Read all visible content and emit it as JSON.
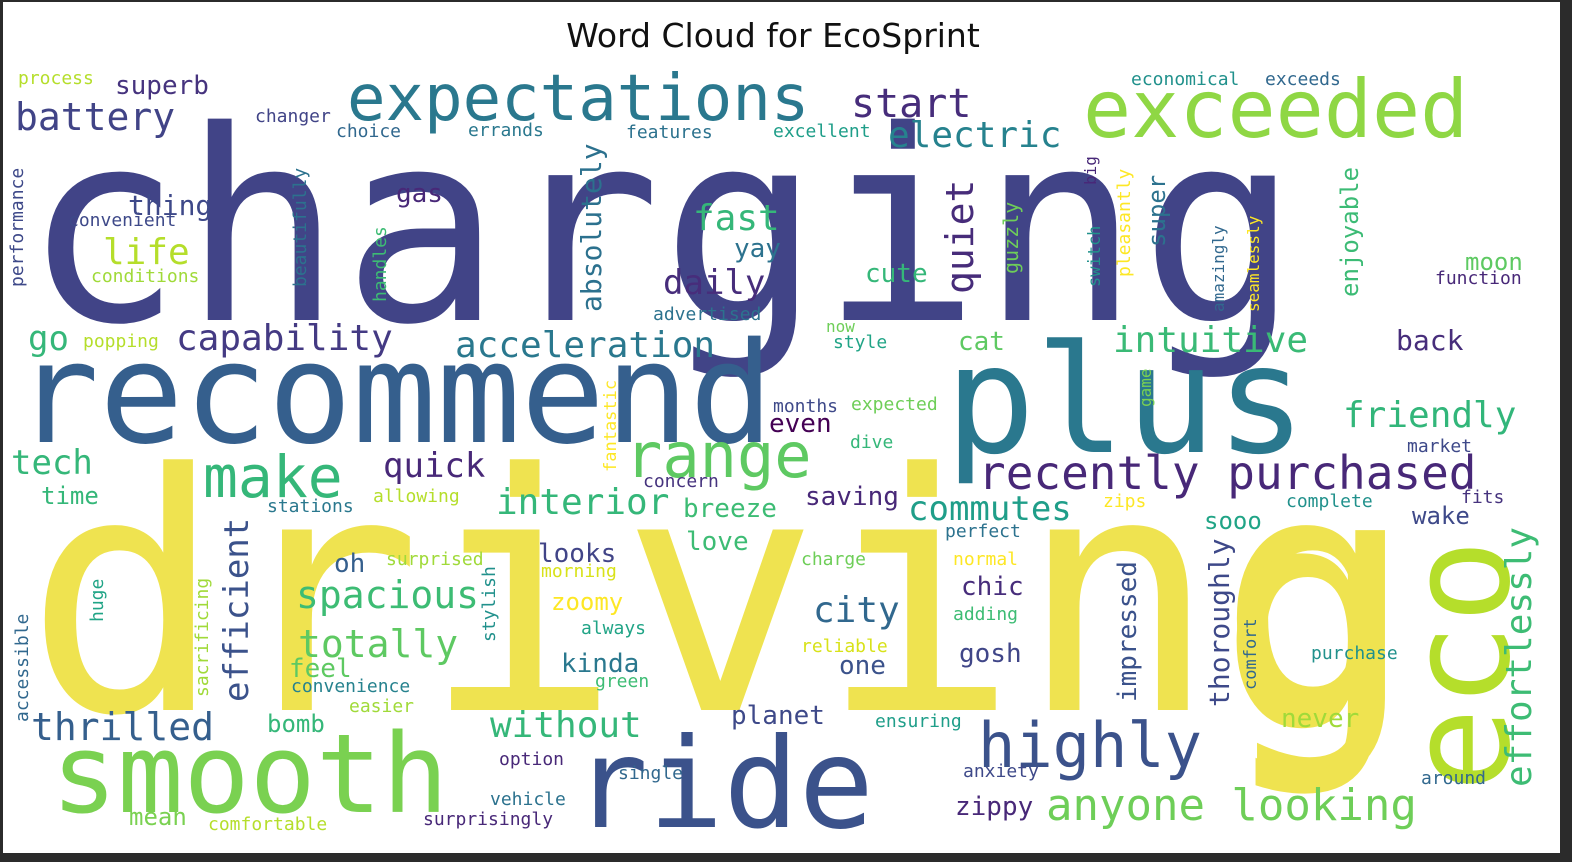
{
  "chart_data": {
    "type": "wordcloud",
    "title": "Word Cloud for EcoSprint",
    "words": [
      {
        "text": "charging",
        "weight": 1.0,
        "color": "#414487"
      },
      {
        "text": "driving",
        "weight": 0.98,
        "color": "#efe350"
      },
      {
        "text": "recommend",
        "weight": 0.62,
        "color": "#355f8d"
      },
      {
        "text": "plus",
        "weight": 0.6,
        "color": "#2a788e"
      },
      {
        "text": "g",
        "weight": 0.6,
        "color": "#efe350"
      },
      {
        "text": "ride",
        "weight": 0.56,
        "color": "#3b528b"
      },
      {
        "text": "smooth",
        "weight": 0.5,
        "color": "#7ad151"
      },
      {
        "text": "exceeded",
        "weight": 0.38,
        "color": "#8fd744"
      },
      {
        "text": "expectations",
        "weight": 0.32,
        "color": "#2a788e"
      },
      {
        "text": "eco",
        "weight": 0.4,
        "color": "#b5de2b"
      },
      {
        "text": "highly",
        "weight": 0.3,
        "color": "#3b528b"
      },
      {
        "text": "range",
        "weight": 0.3,
        "color": "#5ec962"
      },
      {
        "text": "make",
        "weight": 0.28,
        "color": "#35b779"
      },
      {
        "text": "recently purchased",
        "weight": 0.22,
        "color": "#482878"
      },
      {
        "text": "anyone looking",
        "weight": 0.22,
        "color": "#6ece58"
      },
      {
        "text": "effortlessly",
        "weight": 0.18,
        "color": "#3dbc74"
      },
      {
        "text": "start",
        "weight": 0.2,
        "color": "#472d7b"
      },
      {
        "text": "battery",
        "weight": 0.18,
        "color": "#414487"
      },
      {
        "text": "electric",
        "weight": 0.17,
        "color": "#26828e"
      },
      {
        "text": "quiet",
        "weight": 0.18,
        "color": "#472c7a"
      },
      {
        "text": "capability",
        "weight": 0.18,
        "color": "#443a83"
      },
      {
        "text": "acceleration",
        "weight": 0.18,
        "color": "#2a788e"
      },
      {
        "text": "intuitive",
        "weight": 0.18,
        "color": "#3aba76"
      },
      {
        "text": "friendly",
        "weight": 0.18,
        "color": "#32b67a"
      },
      {
        "text": "interior",
        "weight": 0.18,
        "color": "#35b779"
      },
      {
        "text": "commutes",
        "weight": 0.17,
        "color": "#1f9e89"
      },
      {
        "text": "without",
        "weight": 0.18,
        "color": "#35b779"
      },
      {
        "text": "thrilled",
        "weight": 0.18,
        "color": "#355f8d"
      },
      {
        "text": "spacious",
        "weight": 0.18,
        "color": "#3dbc74"
      },
      {
        "text": "totally",
        "weight": 0.18,
        "color": "#5ec962"
      },
      {
        "text": "efficient",
        "weight": 0.17,
        "color": "#3b528b"
      },
      {
        "text": "city",
        "weight": 0.18,
        "color": "#31688e"
      },
      {
        "text": "fast",
        "weight": 0.17,
        "color": "#35b779"
      },
      {
        "text": "life",
        "weight": 0.17,
        "color": "#b5de2b"
      },
      {
        "text": "daily",
        "weight": 0.16,
        "color": "#472d7b"
      },
      {
        "text": "quick",
        "weight": 0.16,
        "color": "#482878"
      },
      {
        "text": "tech",
        "weight": 0.16,
        "color": "#35b779"
      },
      {
        "text": "go",
        "weight": 0.15,
        "color": "#35b779"
      },
      {
        "text": "absolutely",
        "weight": 0.13,
        "color": "#2c718e"
      },
      {
        "text": "impressed",
        "weight": 0.12,
        "color": "#3b528b"
      },
      {
        "text": "thoroughly",
        "weight": 0.13,
        "color": "#3e4989"
      },
      {
        "text": "superb",
        "weight": 0.12,
        "color": "#46337e"
      },
      {
        "text": "thing",
        "weight": 0.12,
        "color": "#3e4989"
      },
      {
        "text": "yay",
        "weight": 0.11,
        "color": "#2c728e"
      },
      {
        "text": "cute",
        "weight": 0.11,
        "color": "#35b779"
      },
      {
        "text": "gas",
        "weight": 0.11,
        "color": "#482878"
      },
      {
        "text": "back",
        "weight": 0.11,
        "color": "#472d7b"
      },
      {
        "text": "enjoyable",
        "weight": 0.11,
        "color": "#3cbb75"
      },
      {
        "text": "super",
        "weight": 0.11,
        "color": "#2c728e"
      },
      {
        "text": "moon",
        "weight": 0.1,
        "color": "#5ec962"
      },
      {
        "text": "cat",
        "weight": 0.1,
        "color": "#5ec962"
      },
      {
        "text": "even",
        "weight": 0.11,
        "color": "#440154"
      },
      {
        "text": "saving",
        "weight": 0.11,
        "color": "#482878"
      },
      {
        "text": "breeze",
        "weight": 0.11,
        "color": "#3dbc74"
      },
      {
        "text": "love",
        "weight": 0.11,
        "color": "#3dbc74"
      },
      {
        "text": "looks",
        "weight": 0.11,
        "color": "#414487"
      },
      {
        "text": "oh",
        "weight": 0.11,
        "color": "#355f8d"
      },
      {
        "text": "feel",
        "weight": 0.11,
        "color": "#5ec962"
      },
      {
        "text": "bomb",
        "weight": 0.1,
        "color": "#35b779"
      },
      {
        "text": "planet",
        "weight": 0.1,
        "color": "#3e4989"
      },
      {
        "text": "kinda",
        "weight": 0.1,
        "color": "#2a788e"
      },
      {
        "text": "one",
        "weight": 0.1,
        "color": "#3b528b"
      },
      {
        "text": "gosh",
        "weight": 0.1,
        "color": "#404688"
      },
      {
        "text": "chic",
        "weight": 0.1,
        "color": "#472d7b"
      },
      {
        "text": "zippy",
        "weight": 0.1,
        "color": "#482878"
      },
      {
        "text": "sooo",
        "weight": 0.1,
        "color": "#20a486"
      },
      {
        "text": "wake",
        "weight": 0.1,
        "color": "#3e4989"
      },
      {
        "text": "never",
        "weight": 0.1,
        "color": "#a0da39"
      },
      {
        "text": "zoomy",
        "weight": 0.1,
        "color": "#fde725"
      },
      {
        "text": "mean",
        "weight": 0.09,
        "color": "#7ad151"
      },
      {
        "text": "time",
        "weight": 0.09,
        "color": "#35b779"
      },
      {
        "text": "guzzly",
        "weight": 0.08,
        "color": "#6ece58"
      },
      {
        "text": "process",
        "weight": 0.07,
        "color": "#b5de2b"
      },
      {
        "text": "changer",
        "weight": 0.07,
        "color": "#414487"
      },
      {
        "text": "choice",
        "weight": 0.07,
        "color": "#31688e"
      },
      {
        "text": "errands",
        "weight": 0.07,
        "color": "#2a788e"
      },
      {
        "text": "features",
        "weight": 0.07,
        "color": "#2c728e"
      },
      {
        "text": "excellent",
        "weight": 0.07,
        "color": "#1f9e89"
      },
      {
        "text": "economical",
        "weight": 0.07,
        "color": "#21918c"
      },
      {
        "text": "exceeds",
        "weight": 0.07,
        "color": "#31688e"
      },
      {
        "text": "convenient",
        "weight": 0.07,
        "color": "#3e4989"
      },
      {
        "text": "conditions",
        "weight": 0.07,
        "color": "#a0da39"
      },
      {
        "text": "performance",
        "weight": 0.07,
        "color": "#3e4989"
      },
      {
        "text": "beautifully",
        "weight": 0.07,
        "color": "#2c728e"
      },
      {
        "text": "handles",
        "weight": 0.07,
        "color": "#3dbc74"
      },
      {
        "text": "popping",
        "weight": 0.07,
        "color": "#b5de2b"
      },
      {
        "text": "advertised",
        "weight": 0.07,
        "color": "#2c728e"
      },
      {
        "text": "now",
        "weight": 0.06,
        "color": "#6ece58"
      },
      {
        "text": "style",
        "weight": 0.06,
        "color": "#20a486"
      },
      {
        "text": "switch",
        "weight": 0.06,
        "color": "#21918c"
      },
      {
        "text": "big",
        "weight": 0.06,
        "color": "#482878"
      },
      {
        "text": "pleasantly",
        "weight": 0.07,
        "color": "#fde725"
      },
      {
        "text": "amazingly",
        "weight": 0.07,
        "color": "#31688e"
      },
      {
        "text": "seamlessly",
        "weight": 0.07,
        "color": "#fde725"
      },
      {
        "text": "function",
        "weight": 0.07,
        "color": "#482878"
      },
      {
        "text": "game",
        "weight": 0.06,
        "color": "#7ad151"
      },
      {
        "text": "fantastic",
        "weight": 0.06,
        "color": "#fde725"
      },
      {
        "text": "months",
        "weight": 0.06,
        "color": "#3e4989"
      },
      {
        "text": "expected",
        "weight": 0.06,
        "color": "#6ece58"
      },
      {
        "text": "dive",
        "weight": 0.06,
        "color": "#35b779"
      },
      {
        "text": "concern",
        "weight": 0.06,
        "color": "#46337e"
      },
      {
        "text": "market",
        "weight": 0.06,
        "color": "#3e4989"
      },
      {
        "text": "stations",
        "weight": 0.06,
        "color": "#2a788e"
      },
      {
        "text": "allowing",
        "weight": 0.06,
        "color": "#b5de2b"
      },
      {
        "text": "zips",
        "weight": 0.06,
        "color": "#fde725"
      },
      {
        "text": "complete",
        "weight": 0.06,
        "color": "#21918c"
      },
      {
        "text": "fits",
        "weight": 0.06,
        "color": "#46337e"
      },
      {
        "text": "perfect",
        "weight": 0.06,
        "color": "#2c728e"
      },
      {
        "text": "surprised",
        "weight": 0.06,
        "color": "#a0da39"
      },
      {
        "text": "morning",
        "weight": 0.06,
        "color": "#d8e219"
      },
      {
        "text": "charge",
        "weight": 0.06,
        "color": "#6ece58"
      },
      {
        "text": "normal",
        "weight": 0.06,
        "color": "#fde725"
      },
      {
        "text": "adding",
        "weight": 0.06,
        "color": "#3dbc74"
      },
      {
        "text": "huge",
        "weight": 0.06,
        "color": "#20a486"
      },
      {
        "text": "sacrificing",
        "weight": 0.06,
        "color": "#a0da39"
      },
      {
        "text": "stylish",
        "weight": 0.06,
        "color": "#21918c"
      },
      {
        "text": "always",
        "weight": 0.06,
        "color": "#20a486"
      },
      {
        "text": "reliable",
        "weight": 0.06,
        "color": "#d8e219"
      },
      {
        "text": "comfort",
        "weight": 0.06,
        "color": "#31688e"
      },
      {
        "text": "purchase",
        "weight": 0.06,
        "color": "#21918c"
      },
      {
        "text": "accessible",
        "weight": 0.06,
        "color": "#31688e"
      },
      {
        "text": "convenience",
        "weight": 0.06,
        "color": "#26828e"
      },
      {
        "text": "green",
        "weight": 0.06,
        "color": "#3dbc74"
      },
      {
        "text": "easier",
        "weight": 0.06,
        "color": "#a0da39"
      },
      {
        "text": "ensuring",
        "weight": 0.06,
        "color": "#1f9e89"
      },
      {
        "text": "anxiety",
        "weight": 0.06,
        "color": "#3e4989"
      },
      {
        "text": "around",
        "weight": 0.06,
        "color": "#31688e"
      },
      {
        "text": "option",
        "weight": 0.06,
        "color": "#482878"
      },
      {
        "text": "single",
        "weight": 0.06,
        "color": "#31688e"
      },
      {
        "text": "vehicle",
        "weight": 0.06,
        "color": "#2c728e"
      },
      {
        "text": "surprisingly",
        "weight": 0.06,
        "color": "#482878"
      },
      {
        "text": "comfortable",
        "weight": 0.06,
        "color": "#b5de2b"
      }
    ]
  }
}
